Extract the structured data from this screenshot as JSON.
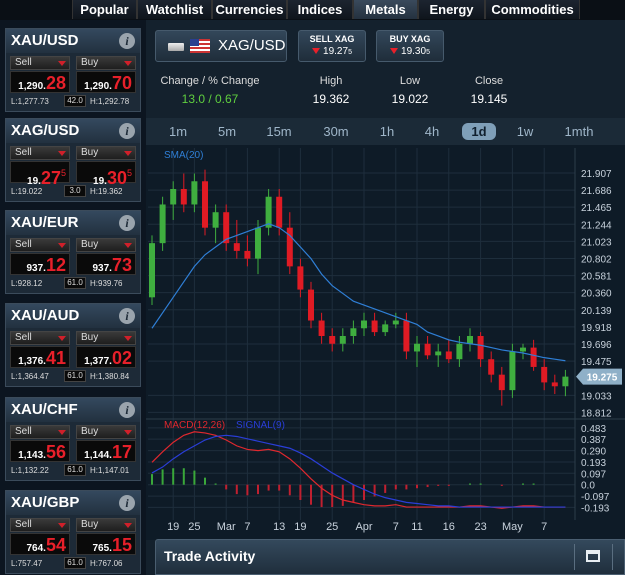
{
  "tabs": {
    "items": [
      "Popular",
      "Watchlist",
      "Currencies",
      "Indices",
      "Metals",
      "Energy",
      "Commodities"
    ],
    "selected": 4
  },
  "sidebar": {
    "sell_label": "Sell",
    "buy_label": "Buy",
    "instruments": [
      {
        "name": "XAU/USD",
        "sell": {
          "main": "1,290.",
          "big": "28"
        },
        "buy": {
          "main": "1,290.",
          "big": "70"
        },
        "low": "L:1,277.73",
        "spread": "42.0",
        "high": "H:1,292.78"
      },
      {
        "name": "XAG/USD",
        "sell": {
          "main": "19.",
          "big": "27",
          "sup": "5"
        },
        "buy": {
          "main": "19.",
          "big": "30",
          "sup": "5"
        },
        "low": "L:19.022",
        "spread": "3.0",
        "high": "H:19.362"
      },
      {
        "name": "XAU/EUR",
        "sell": {
          "main": "937.",
          "big": "12"
        },
        "buy": {
          "main": "937.",
          "big": "73"
        },
        "low": "L:928.12",
        "spread": "61.0",
        "high": "H:939.76"
      },
      {
        "name": "XAU/AUD",
        "sell": {
          "main": "1,376.",
          "big": "41"
        },
        "buy": {
          "main": "1,377.",
          "big": "02"
        },
        "low": "L:1,364.47",
        "spread": "61.0",
        "high": "H:1,380.84"
      },
      {
        "name": "XAU/CHF",
        "sell": {
          "main": "1,143.",
          "big": "56"
        },
        "buy": {
          "main": "1,144.",
          "big": "17"
        },
        "low": "L:1,132.22",
        "spread": "61.0",
        "high": "H:1,147.01"
      },
      {
        "name": "XAU/GBP",
        "sell": {
          "main": "764.",
          "big": "54"
        },
        "buy": {
          "main": "765.",
          "big": "15"
        },
        "low": "L:757.47",
        "spread": "61.0",
        "high": "H:767.06"
      }
    ]
  },
  "header": {
    "symbol": "XAG/USD",
    "sell": {
      "label": "SELL XAG",
      "main": "19.27",
      "sup": "5"
    },
    "buy": {
      "label": "BUY XAG",
      "main": "19.30",
      "sup": "5"
    }
  },
  "stats": [
    {
      "label": "Change / % Change",
      "value": "13.0 / 0.67"
    },
    {
      "label": "High",
      "value": 19.362
    },
    {
      "label": "Low",
      "value": 19.022
    },
    {
      "label": "Close",
      "value": 19.145
    }
  ],
  "timeframes": {
    "items": [
      "1m",
      "5m",
      "15m",
      "30m",
      "1h",
      "4h",
      "1d",
      "1w",
      "1mth"
    ],
    "selected": 6
  },
  "chart_data": [
    {
      "type": "candlestick",
      "up_color": "#3fae3f",
      "down_color": "#e01b24",
      "grid": true,
      "categories": [
        null,
        null,
        "19",
        null,
        "25",
        null,
        null,
        "Mar",
        null,
        "7",
        null,
        null,
        "13",
        null,
        "19",
        null,
        null,
        "25",
        null,
        null,
        "Apr",
        null,
        null,
        "7",
        null,
        "11",
        null,
        null,
        "16",
        null,
        null,
        "23",
        null,
        null,
        "May",
        null,
        null,
        "7",
        null,
        null
      ],
      "open": [
        20.3,
        21.0,
        21.5,
        21.7,
        21.5,
        21.8,
        21.2,
        21.4,
        21.0,
        20.9,
        20.8,
        21.2,
        21.6,
        21.2,
        20.7,
        20.4,
        20.0,
        19.8,
        19.7,
        19.8,
        19.9,
        20.0,
        19.85,
        19.95,
        20.0,
        19.6,
        19.7,
        19.55,
        19.6,
        19.5,
        19.7,
        19.8,
        19.5,
        19.3,
        19.1,
        19.6,
        19.65,
        19.4,
        19.2,
        19.15
      ],
      "high": [
        21.1,
        21.6,
        21.8,
        21.9,
        21.9,
        21.95,
        21.5,
        21.5,
        21.3,
        21.1,
        21.3,
        21.7,
        21.7,
        21.4,
        20.8,
        20.5,
        20.1,
        19.9,
        19.9,
        20.0,
        20.1,
        20.1,
        20.0,
        20.1,
        20.1,
        19.8,
        19.8,
        19.7,
        19.75,
        19.8,
        19.9,
        19.85,
        19.6,
        19.4,
        19.7,
        19.7,
        19.75,
        19.5,
        19.3,
        19.362
      ],
      "low": [
        20.2,
        20.9,
        21.3,
        21.4,
        21.4,
        21.1,
        21.0,
        20.9,
        20.8,
        20.7,
        20.6,
        21.1,
        21.1,
        20.6,
        20.3,
        19.9,
        19.7,
        19.6,
        19.6,
        19.7,
        19.8,
        19.8,
        19.8,
        19.9,
        19.5,
        19.4,
        19.5,
        19.4,
        19.45,
        19.4,
        19.6,
        19.4,
        19.2,
        18.9,
        19.0,
        19.5,
        19.35,
        19.1,
        19.05,
        19.022
      ],
      "close": [
        21.0,
        21.5,
        21.7,
        21.5,
        21.8,
        21.2,
        21.4,
        21.0,
        20.9,
        20.8,
        21.2,
        21.6,
        21.2,
        20.7,
        20.4,
        20.0,
        19.8,
        19.7,
        19.8,
        19.9,
        20.0,
        19.85,
        19.95,
        20.0,
        19.6,
        19.7,
        19.55,
        19.6,
        19.5,
        19.7,
        19.8,
        19.5,
        19.3,
        19.1,
        19.6,
        19.65,
        19.4,
        19.2,
        19.15,
        19.275
      ],
      "series": [
        {
          "name": "SMA(20)",
          "color": "#2f7fd6",
          "values": [
            19.9,
            20.1,
            20.3,
            20.5,
            20.7,
            20.85,
            20.95,
            21.05,
            21.1,
            21.15,
            21.2,
            21.25,
            21.2,
            21.1,
            20.95,
            20.8,
            20.6,
            20.45,
            20.35,
            20.25,
            20.2,
            20.15,
            20.1,
            20.05,
            20.0,
            19.95,
            19.85,
            19.8,
            19.75,
            19.72,
            19.7,
            19.68,
            19.65,
            19.62,
            19.6,
            19.58,
            19.55,
            19.52,
            19.5,
            19.48
          ]
        }
      ],
      "last_price": 19.275,
      "ylim": [
        18.74,
        22.23
      ],
      "yticks": [
        21.907,
        21.686,
        21.465,
        21.244,
        21.023,
        20.802,
        20.581,
        {
          "value": 20.36,
          "label": "20.360"
        },
        20.139,
        19.918,
        19.696,
        19.475,
        19.033,
        18.812
      ]
    },
    {
      "type": "line",
      "grid": true,
      "series": [
        {
          "name": "MACD(12,26)",
          "color": "#e0282e",
          "values": [
            0.19,
            0.28,
            0.36,
            0.42,
            0.45,
            0.44,
            0.42,
            0.38,
            0.33,
            0.3,
            0.29,
            0.3,
            0.28,
            0.22,
            0.14,
            0.05,
            -0.03,
            -0.09,
            -0.13,
            -0.15,
            -0.17,
            -0.18,
            -0.18,
            -0.17,
            -0.19,
            -0.19,
            -0.19,
            -0.19,
            -0.19,
            -0.19,
            -0.18,
            -0.18,
            -0.19,
            -0.2,
            -0.19,
            -0.18,
            -0.18,
            -0.19,
            -0.19,
            -0.19
          ]
        },
        {
          "name": "SIGNAL(9)",
          "color": "#2a3ed8",
          "values": [
            0.1,
            0.15,
            0.22,
            0.28,
            0.33,
            0.38,
            0.41,
            0.42,
            0.41,
            0.39,
            0.37,
            0.35,
            0.33,
            0.31,
            0.27,
            0.22,
            0.16,
            0.1,
            0.05,
            0.0,
            -0.04,
            -0.08,
            -0.11,
            -0.13,
            -0.15,
            -0.16,
            -0.17,
            -0.18,
            -0.18,
            -0.19,
            -0.19,
            -0.19,
            -0.19,
            -0.19,
            -0.19,
            -0.19,
            -0.19,
            -0.19,
            -0.19,
            -0.19
          ]
        }
      ],
      "histogram": {
        "up_color": "#3aa83a",
        "down_color": "#c02030",
        "values": [
          0.09,
          0.13,
          0.14,
          0.14,
          0.12,
          0.06,
          0.01,
          -0.04,
          -0.08,
          -0.09,
          -0.08,
          -0.05,
          -0.05,
          -0.09,
          -0.13,
          -0.17,
          -0.19,
          -0.19,
          -0.18,
          -0.15,
          -0.13,
          -0.1,
          -0.07,
          -0.04,
          -0.04,
          -0.03,
          -0.02,
          -0.01,
          -0.01,
          0,
          0.01,
          0.01,
          0,
          -0.01,
          0,
          0.01,
          0.01,
          0,
          0,
          0
        ]
      },
      "ylim": [
        -0.3,
        0.55
      ],
      "yticks": [
        0.483,
        0.387,
        {
          "value": 0.29,
          "label": "0.290"
        },
        0.193,
        0.097,
        {
          "value": 0,
          "label": "0.0"
        },
        -0.097,
        -0.193
      ]
    }
  ],
  "trade_activity": {
    "title": "Trade Activity"
  }
}
